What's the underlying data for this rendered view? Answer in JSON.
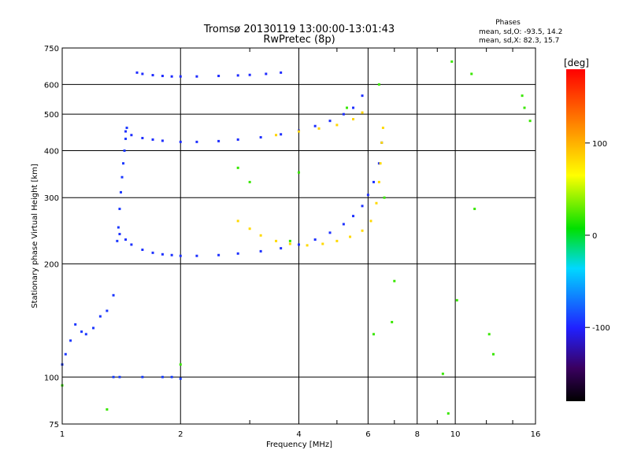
{
  "chart_data": {
    "type": "scatter",
    "title": "Tromsø 20130119 13:00:00-13:01:43",
    "subtitle": "RwPretec (8p)",
    "xlabel": "Frequency [MHz]",
    "ylabel": "Stationary phase Virtual Height [km]",
    "x_scale": "log",
    "y_scale": "log",
    "xlim": [
      1,
      16
    ],
    "ylim": [
      75,
      750
    ],
    "x_ticks": [
      1,
      2,
      4,
      6,
      8,
      10,
      16
    ],
    "x_tick_labels": [
      "1",
      "2",
      "4",
      "6",
      "8",
      "10",
      "16"
    ],
    "y_ticks": [
      75,
      100,
      200,
      300,
      400,
      500,
      600,
      750
    ],
    "y_tick_labels": [
      "75",
      "100",
      "200",
      "300",
      "400",
      "500",
      "600",
      "750"
    ],
    "grid": true,
    "phase_info": {
      "heading": "Phases",
      "line_o": "mean, sd,O: -93.5, 14.2",
      "line_x": "mean, sd,X:  82.3, 15.7"
    },
    "colorbar": {
      "label": "[deg]",
      "range": [
        -180,
        180
      ],
      "tick_values": [
        100,
        0,
        -100
      ],
      "tick_labels": [
        "100",
        "0",
        "-100"
      ]
    },
    "series": [
      {
        "phase": -93,
        "x": [
          1.0,
          1.02,
          1.05,
          1.08,
          1.12,
          1.15,
          1.2,
          1.25,
          1.3,
          1.35
        ],
        "y": [
          108,
          115,
          125,
          138,
          132,
          130,
          135,
          145,
          150,
          165
        ]
      },
      {
        "phase": -95,
        "x": [
          1.4,
          1.45,
          1.5,
          1.6,
          1.7,
          1.8,
          1.9,
          2.0,
          2.2,
          2.5,
          2.8,
          3.2,
          3.6,
          4.0,
          4.4,
          4.8,
          5.2,
          5.5,
          5.8,
          6.0,
          6.2,
          6.4,
          6.5
        ],
        "y": [
          240,
          232,
          225,
          218,
          214,
          212,
          211,
          210,
          210,
          211,
          213,
          216,
          220,
          225,
          232,
          242,
          255,
          268,
          285,
          305,
          330,
          370,
          420
        ]
      },
      {
        "phase": -92,
        "x": [
          1.38,
          1.39,
          1.4,
          1.41,
          1.42,
          1.43,
          1.44,
          1.45,
          1.46
        ],
        "y": [
          230,
          250,
          280,
          310,
          340,
          370,
          400,
          430,
          460
        ]
      },
      {
        "phase": -96,
        "x": [
          1.45,
          1.5,
          1.6,
          1.7,
          1.8,
          2.0,
          2.2,
          2.5,
          2.8,
          3.2,
          3.6,
          4.0,
          4.4,
          4.8,
          5.2,
          5.5,
          5.8
        ],
        "y": [
          450,
          440,
          432,
          428,
          425,
          422,
          422,
          424,
          428,
          434,
          442,
          452,
          465,
          480,
          500,
          520,
          560
        ]
      },
      {
        "phase": -97,
        "x": [
          1.55,
          1.6,
          1.7,
          1.8,
          1.9,
          2.0,
          2.2,
          2.5,
          2.8,
          3.0,
          3.3,
          3.6
        ],
        "y": [
          645,
          640,
          635,
          632,
          630,
          630,
          630,
          632,
          634,
          636,
          640,
          645
        ]
      },
      {
        "phase": 82,
        "x": [
          2.8,
          3.0,
          3.2,
          3.5,
          3.8,
          4.2,
          4.6,
          5.0,
          5.4,
          5.8,
          6.1,
          6.3,
          6.4,
          6.45,
          6.5,
          6.55
        ],
        "y": [
          260,
          248,
          238,
          230,
          226,
          224,
          226,
          230,
          236,
          245,
          260,
          290,
          330,
          370,
          420,
          460
        ]
      },
      {
        "phase": 84,
        "x": [
          3.5,
          4.0,
          4.5,
          5.0,
          5.5,
          5.8
        ],
        "y": [
          440,
          450,
          458,
          468,
          485,
          505
        ]
      },
      {
        "phase": -90,
        "x": [
          1.35,
          1.4,
          1.6,
          1.8,
          1.9,
          2.0
        ],
        "y": [
          100,
          100,
          100,
          100,
          100,
          99
        ]
      },
      {
        "phase": 20,
        "x": [
          1.0,
          1.3,
          2.0,
          2.8,
          3.0,
          3.8,
          4.0,
          5.3,
          6.2,
          6.4,
          6.6,
          6.9,
          7.0,
          9.3,
          9.6,
          9.8,
          10.1,
          11.0,
          11.2,
          12.2,
          12.5,
          14.8,
          15.0,
          15.5
        ],
        "y": [
          95,
          82,
          108,
          360,
          330,
          230,
          350,
          520,
          130,
          600,
          300,
          140,
          180,
          102,
          80,
          690,
          160,
          640,
          280,
          130,
          115,
          560,
          520,
          480
        ]
      }
    ]
  }
}
